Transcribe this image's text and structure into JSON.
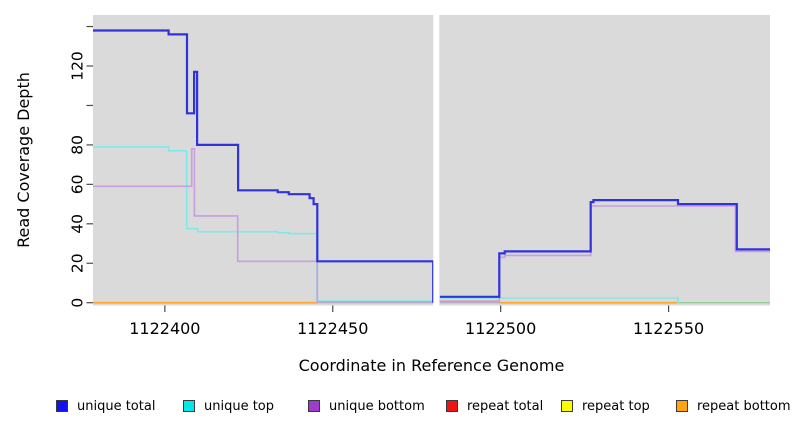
{
  "figure": {
    "x_axis_label": "Coordinate in Reference Genome",
    "y_axis_label": "Read Coverage Depth"
  },
  "chart_data": {
    "type": "line",
    "subtype": "step-coverage",
    "title": "",
    "xlabel": "Coordinate in Reference Genome",
    "ylabel": "Read Coverage Depth",
    "xlim": [
      1122378.6,
      1122580.2
    ],
    "ylim": [
      0,
      145.9
    ],
    "grid": false,
    "legend_position": "bottom",
    "panel_background": "#DADADA",
    "gap_region": {
      "x_start": 1122479.95,
      "x_end": 1122481.75
    },
    "x_ticks": [
      {
        "value": 1122400,
        "label": "1122400"
      },
      {
        "value": 1122450,
        "label": "1122450"
      },
      {
        "value": 1122500,
        "label": "1122500"
      },
      {
        "value": 1122550,
        "label": "1122550"
      }
    ],
    "y_ticks": [
      {
        "value": 0,
        "label": "0"
      },
      {
        "value": 20,
        "label": "20"
      },
      {
        "value": 40,
        "label": "40"
      },
      {
        "value": 60,
        "label": "60"
      },
      {
        "value": 80,
        "label": "80"
      },
      {
        "value": 100,
        "label": ""
      },
      {
        "value": 120,
        "label": "120"
      },
      {
        "value": 140,
        "label": ""
      }
    ],
    "series": [
      {
        "name": "baseline",
        "color": "#93CD93",
        "width": 1.4,
        "in_legend": false,
        "segments": [
          [
            [
              1122445.4,
              0
            ],
            [
              1122479.9,
              0
            ]
          ],
          [
            [
              1122481.9,
              0
            ],
            [
              1122580.2,
              0
            ]
          ]
        ]
      },
      {
        "name": "repeat total",
        "color": "#E06A8E",
        "width": 1.4,
        "in_legend": true,
        "segments": [
          [
            [
              1122481.9,
              0.7
            ],
            [
              1122499.5,
              0.7
            ]
          ]
        ]
      },
      {
        "name": "repeat top",
        "color": "#F5F500",
        "width": 1.4,
        "in_legend": true,
        "segments": []
      },
      {
        "name": "repeat bottom",
        "color": "#FFA32B",
        "width": 1.7,
        "in_legend": true,
        "segments": [
          [
            [
              1122378.6,
              0
            ],
            [
              1122445.4,
              0
            ]
          ],
          [
            [
              1122499.6,
              0
            ],
            [
              1122552.8,
              0
            ]
          ]
        ]
      },
      {
        "name": "unique top",
        "color": "#7FE9E9",
        "width": 1.6,
        "in_legend": true,
        "segments": [
          [
            [
              1122378.6,
              79
            ],
            [
              1122401.1,
              77
            ],
            [
              1122406.5,
              37.5
            ],
            [
              1122409.8,
              36
            ],
            [
              1122433.6,
              35.5
            ],
            [
              1122436.9,
              35
            ],
            [
              1122445.3,
              0.8
            ],
            [
              1122479.9,
              0.8
            ]
          ],
          [
            [
              1122481.9,
              2.4
            ],
            [
              1122552.8,
              0
            ],
            [
              1122553.2,
              0
            ]
          ]
        ]
      },
      {
        "name": "unique bottom",
        "color": "#C79EDF",
        "width": 1.6,
        "in_legend": true,
        "segments": [
          [
            [
              1122378.6,
              59
            ],
            [
              1122408.0,
              78
            ],
            [
              1122408.8,
              44
            ],
            [
              1122421.7,
              21
            ],
            [
              1122445.4,
              0.4
            ],
            [
              1122479.9,
              0.4
            ]
          ],
          [
            [
              1122481.9,
              0.4
            ],
            [
              1122499.6,
              23
            ],
            [
              1122501.2,
              24
            ],
            [
              1122526.8,
              49
            ],
            [
              1122569.9,
              26
            ],
            [
              1122580.2,
              26
            ]
          ]
        ]
      },
      {
        "name": "unique total",
        "color": "#3032DC",
        "width": 2.2,
        "in_legend": true,
        "segments": [
          [
            [
              1122378.6,
              138
            ],
            [
              1122401.1,
              136
            ],
            [
              1122406.6,
              96
            ],
            [
              1122408.7,
              117
            ],
            [
              1122409.6,
              80
            ],
            [
              1122421.8,
              57
            ],
            [
              1122433.6,
              56
            ],
            [
              1122436.9,
              55
            ],
            [
              1122443.1,
              53
            ],
            [
              1122444.3,
              50
            ],
            [
              1122445.4,
              21
            ],
            [
              1122479.9,
              0.5
            ],
            [
              1122480.3,
              0.5
            ]
          ],
          [
            [
              1122481.9,
              3
            ],
            [
              1122499.6,
              25
            ],
            [
              1122501.2,
              26
            ],
            [
              1122526.8,
              51
            ],
            [
              1122527.6,
              52
            ],
            [
              1122552.8,
              50
            ],
            [
              1122570.3,
              27
            ],
            [
              1122580.2,
              27
            ]
          ]
        ]
      }
    ],
    "legend": [
      {
        "label": "unique total",
        "color": "#1212EE"
      },
      {
        "label": "unique top",
        "color": "#00E8E8"
      },
      {
        "label": "unique bottom",
        "color": "#9E3BCF"
      },
      {
        "label": "repeat total",
        "color": "#EE1414"
      },
      {
        "label": "repeat top",
        "color": "#FCFC00"
      },
      {
        "label": "repeat bottom",
        "color": "#FFA50A"
      }
    ]
  }
}
